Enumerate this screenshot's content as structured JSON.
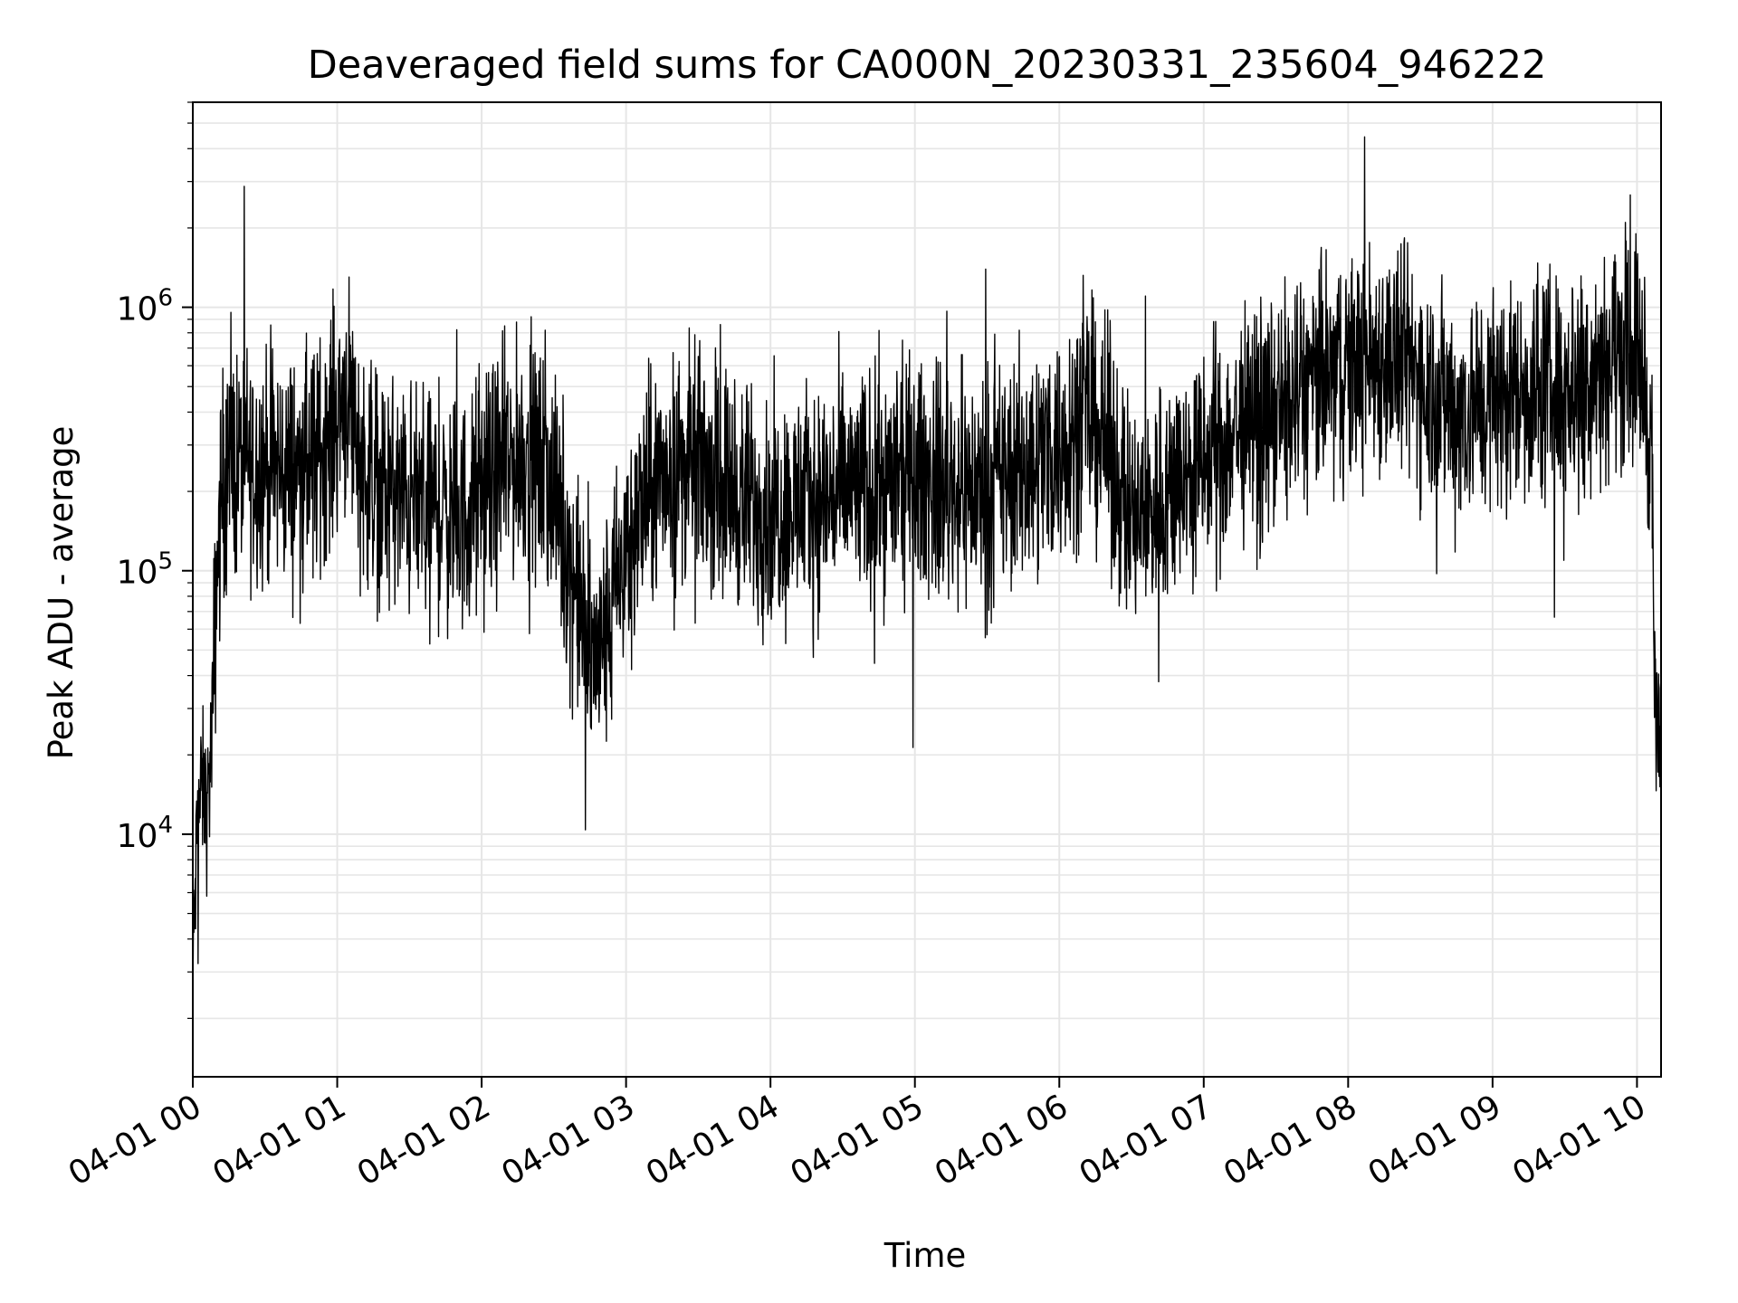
{
  "chart_data": {
    "type": "line",
    "title": "Deaveraged field sums for CA000N_20230331_235604_946222",
    "xlabel": "Time",
    "ylabel": "Peak ADU - average",
    "y_scale": "log",
    "ylim": [
      1200,
      6000000
    ],
    "xlim": [
      "2023-04-01T00:00",
      "2023-04-01T10:10"
    ],
    "x_ticks": [
      "04-01 00",
      "04-01 01",
      "04-01 02",
      "04-01 03",
      "04-01 04",
      "04-01 05",
      "04-01 06",
      "04-01 07",
      "04-01 08",
      "04-01 09",
      "04-01 10"
    ],
    "y_ticks": [
      {
        "base": "10",
        "exp": "4"
      },
      {
        "base": "10",
        "exp": "5"
      },
      {
        "base": "10",
        "exp": "6"
      }
    ],
    "grid": true,
    "line_color": "#000000",
    "series": [
      {
        "x": [
          "2023-04-01T00:00",
          "2023-04-01T00:02",
          "2023-04-01T00:04",
          "2023-04-01T00:06",
          "2023-04-01T00:08",
          "2023-04-01T00:10",
          "2023-04-01T00:12",
          "2023-04-01T00:15",
          "2023-04-01T00:20",
          "2023-04-01T00:30",
          "2023-04-01T00:40",
          "2023-04-01T00:50",
          "2023-04-01T01:00",
          "2023-04-01T01:05",
          "2023-04-01T01:10",
          "2023-04-01T01:20",
          "2023-04-01T01:30",
          "2023-04-01T01:40",
          "2023-04-01T01:50",
          "2023-04-01T02:00",
          "2023-04-01T02:10",
          "2023-04-01T02:20",
          "2023-04-01T02:30",
          "2023-04-01T02:35",
          "2023-04-01T02:40",
          "2023-04-01T02:45",
          "2023-04-01T02:50",
          "2023-04-01T02:55",
          "2023-04-01T03:00",
          "2023-04-01T03:10",
          "2023-04-01T03:20",
          "2023-04-01T03:30",
          "2023-04-01T03:40",
          "2023-04-01T03:50",
          "2023-04-01T04:00",
          "2023-04-01T04:15",
          "2023-04-01T04:30",
          "2023-04-01T04:45",
          "2023-04-01T05:00",
          "2023-04-01T05:15",
          "2023-04-01T05:30",
          "2023-04-01T05:45",
          "2023-04-01T06:00",
          "2023-04-01T06:10",
          "2023-04-01T06:20",
          "2023-04-01T06:30",
          "2023-04-01T06:45",
          "2023-04-01T07:00",
          "2023-04-01T07:15",
          "2023-04-01T07:30",
          "2023-04-01T07:45",
          "2023-04-01T08:00",
          "2023-04-01T08:15",
          "2023-04-01T08:30",
          "2023-04-01T08:45",
          "2023-04-01T09:00",
          "2023-04-01T09:15",
          "2023-04-01T09:30",
          "2023-04-01T09:45",
          "2023-04-01T10:00",
          "2023-04-01T10:03",
          "2023-04-01T10:06",
          "2023-04-01T10:08",
          "2023-04-01T10:10"
        ],
        "values": [
          3000,
          12000,
          15000,
          12000,
          25000,
          100000,
          200000,
          250000,
          260000,
          250000,
          240000,
          250000,
          400000,
          500000,
          250000,
          200000,
          180000,
          180000,
          150000,
          200000,
          250000,
          280000,
          200000,
          120000,
          80000,
          45000,
          50000,
          80000,
          120000,
          200000,
          250000,
          250000,
          220000,
          180000,
          170000,
          180000,
          200000,
          210000,
          230000,
          210000,
          200000,
          250000,
          300000,
          400000,
          300000,
          150000,
          200000,
          250000,
          350000,
          400000,
          500000,
          600000,
          650000,
          550000,
          400000,
          450000,
          500000,
          500000,
          650000,
          700000,
          500000,
          300000,
          20000,
          25000
        ]
      }
    ]
  }
}
